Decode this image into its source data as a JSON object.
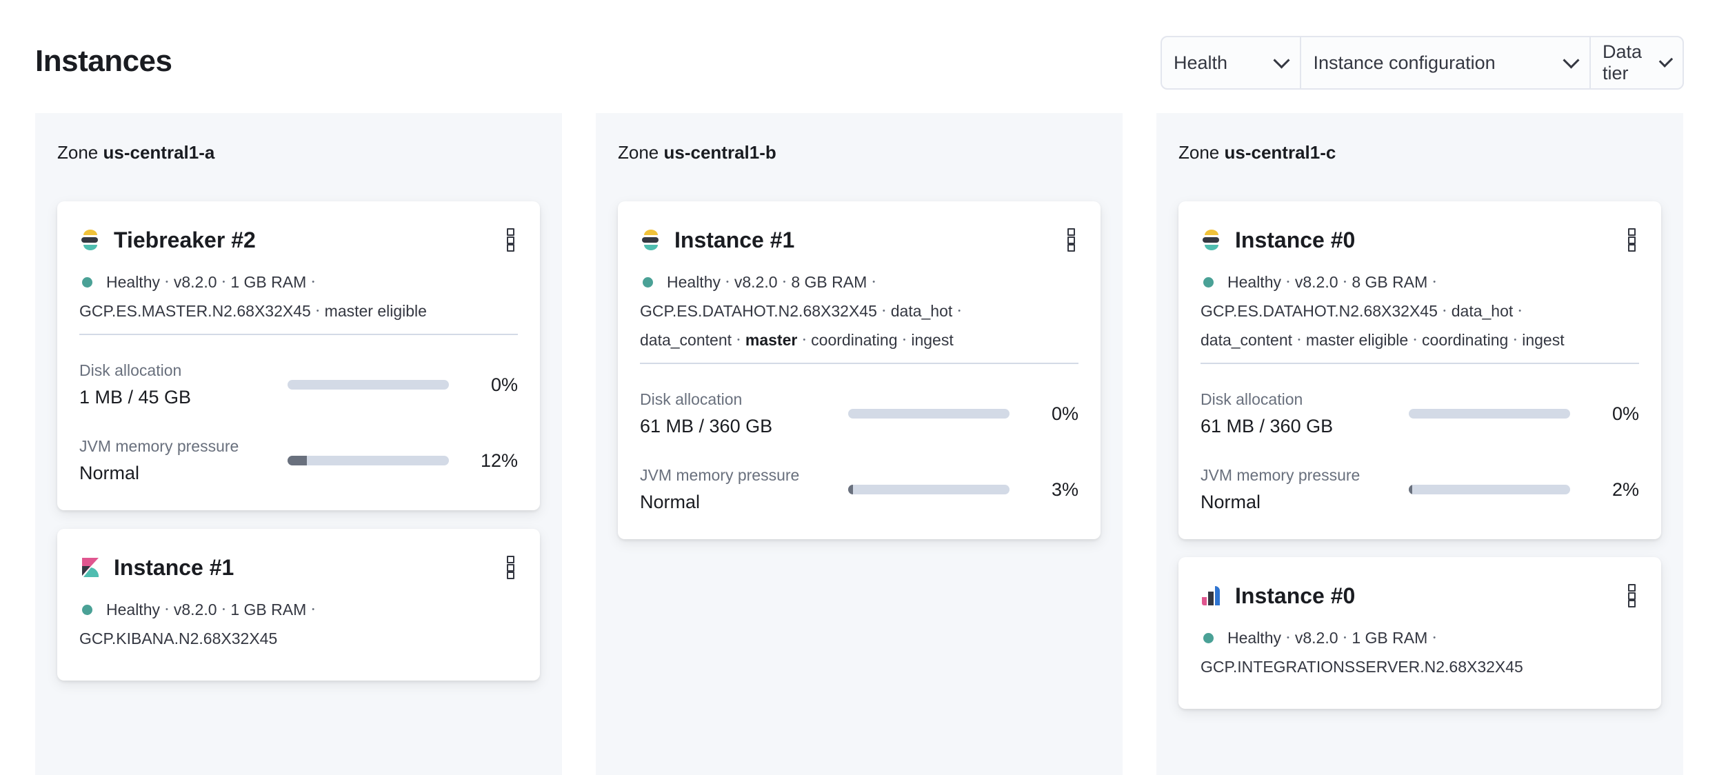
{
  "header": {
    "title": "Instances"
  },
  "filters": [
    {
      "label": "Health",
      "icon": "chevron-down-icon"
    },
    {
      "label": "Instance configuration",
      "icon": "chevron-down-icon"
    },
    {
      "label": "Data tier",
      "icon": "chevron-down-icon"
    }
  ],
  "colors": {
    "healthy": "#4aa196",
    "zone_bg": "#f5f7fa",
    "bar_track": "#d3dae6",
    "bar_fill": "#69707d"
  },
  "zones": [
    {
      "prefix": "Zone",
      "name": "us-central1-a",
      "cards": [
        {
          "icon": "elasticsearch-icon",
          "title": "Tiebreaker #2",
          "meta": [
            [
              {
                "text": "Healthy",
                "status": true
              },
              {
                "text": "v8.2.0"
              },
              {
                "text": "1 GB RAM"
              }
            ],
            [
              {
                "text": "GCP.ES.MASTER.N2.68X32X45"
              },
              {
                "text": "master eligible"
              }
            ]
          ],
          "metrics": [
            {
              "label": "Disk allocation",
              "value": "1 MB / 45 GB",
              "percent_label": "0%",
              "percent": 0
            },
            {
              "label": "JVM memory pressure",
              "value": "Normal",
              "percent_label": "12%",
              "percent": 12
            }
          ]
        },
        {
          "icon": "kibana-icon",
          "title": "Instance #1",
          "meta": [
            [
              {
                "text": "Healthy",
                "status": true
              },
              {
                "text": "v8.2.0"
              },
              {
                "text": "1 GB RAM"
              }
            ],
            [
              {
                "text": "GCP.KIBANA.N2.68X32X45"
              }
            ]
          ]
        }
      ]
    },
    {
      "prefix": "Zone",
      "name": "us-central1-b",
      "cards": [
        {
          "icon": "elasticsearch-icon",
          "title": "Instance #1",
          "meta": [
            [
              {
                "text": "Healthy",
                "status": true
              },
              {
                "text": "v8.2.0"
              },
              {
                "text": "8 GB RAM"
              }
            ],
            [
              {
                "text": "GCP.ES.DATAHOT.N2.68X32X45"
              },
              {
                "text": "data_hot"
              }
            ],
            [
              {
                "text": "data_content"
              },
              {
                "text": "master",
                "bold": true
              },
              {
                "text": "coordinating"
              },
              {
                "text": "ingest"
              }
            ]
          ],
          "metrics": [
            {
              "label": "Disk allocation",
              "value": "61 MB / 360 GB",
              "percent_label": "0%",
              "percent": 0
            },
            {
              "label": "JVM memory pressure",
              "value": "Normal",
              "percent_label": "3%",
              "percent": 3
            }
          ]
        }
      ]
    },
    {
      "prefix": "Zone",
      "name": "us-central1-c",
      "cards": [
        {
          "icon": "elasticsearch-icon",
          "title": "Instance #0",
          "meta": [
            [
              {
                "text": "Healthy",
                "status": true
              },
              {
                "text": "v8.2.0"
              },
              {
                "text": "8 GB RAM"
              }
            ],
            [
              {
                "text": "GCP.ES.DATAHOT.N2.68X32X45"
              },
              {
                "text": "data_hot"
              }
            ],
            [
              {
                "text": "data_content"
              },
              {
                "text": "master eligible"
              },
              {
                "text": "coordinating"
              },
              {
                "text": "ingest"
              }
            ]
          ],
          "metrics": [
            {
              "label": "Disk allocation",
              "value": "61 MB / 360 GB",
              "percent_label": "0%",
              "percent": 0
            },
            {
              "label": "JVM memory pressure",
              "value": "Normal",
              "percent_label": "2%",
              "percent": 2
            }
          ]
        },
        {
          "icon": "integrations-server-icon",
          "title": "Instance #0",
          "meta": [
            [
              {
                "text": "Healthy",
                "status": true
              },
              {
                "text": "v8.2.0"
              },
              {
                "text": "1 GB RAM"
              }
            ],
            [
              {
                "text": "GCP.INTEGRATIONSSERVER.N2.68X32X45"
              }
            ]
          ]
        }
      ]
    }
  ]
}
